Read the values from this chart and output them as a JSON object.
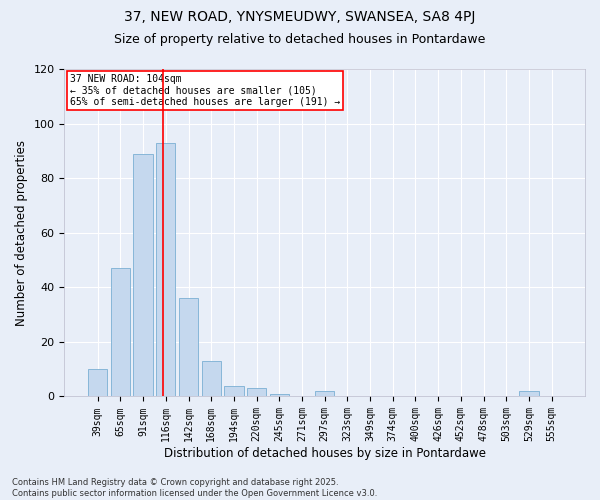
{
  "title": "37, NEW ROAD, YNYSMEUDWY, SWANSEA, SA8 4PJ",
  "subtitle": "Size of property relative to detached houses in Pontardawe",
  "xlabel": "Distribution of detached houses by size in Pontardawe",
  "ylabel": "Number of detached properties",
  "categories": [
    "39sqm",
    "65sqm",
    "91sqm",
    "116sqm",
    "142sqm",
    "168sqm",
    "194sqm",
    "220sqm",
    "245sqm",
    "271sqm",
    "297sqm",
    "323sqm",
    "349sqm",
    "374sqm",
    "400sqm",
    "426sqm",
    "452sqm",
    "478sqm",
    "503sqm",
    "529sqm",
    "555sqm"
  ],
  "values": [
    10,
    47,
    89,
    93,
    36,
    13,
    4,
    3,
    1,
    0,
    2,
    0,
    0,
    0,
    0,
    0,
    0,
    0,
    0,
    2,
    0
  ],
  "bar_color": "#c5d8ee",
  "bar_edge_color": "#7aafd4",
  "vline_x": 2.87,
  "vline_color": "red",
  "annotation_title": "37 NEW ROAD: 104sqm",
  "annotation_line1": "← 35% of detached houses are smaller (105)",
  "annotation_line2": "65% of semi-detached houses are larger (191) →",
  "annotation_box_color": "white",
  "annotation_box_edge_color": "red",
  "ylim": [
    0,
    120
  ],
  "yticks": [
    0,
    20,
    40,
    60,
    80,
    100,
    120
  ],
  "footer_line1": "Contains HM Land Registry data © Crown copyright and database right 2025.",
  "footer_line2": "Contains public sector information licensed under the Open Government Licence v3.0.",
  "bg_color": "#e8eef8",
  "plot_bg_color": "#e8eef8",
  "grid_color": "#ffffff",
  "title_fontsize": 10,
  "subtitle_fontsize": 9
}
